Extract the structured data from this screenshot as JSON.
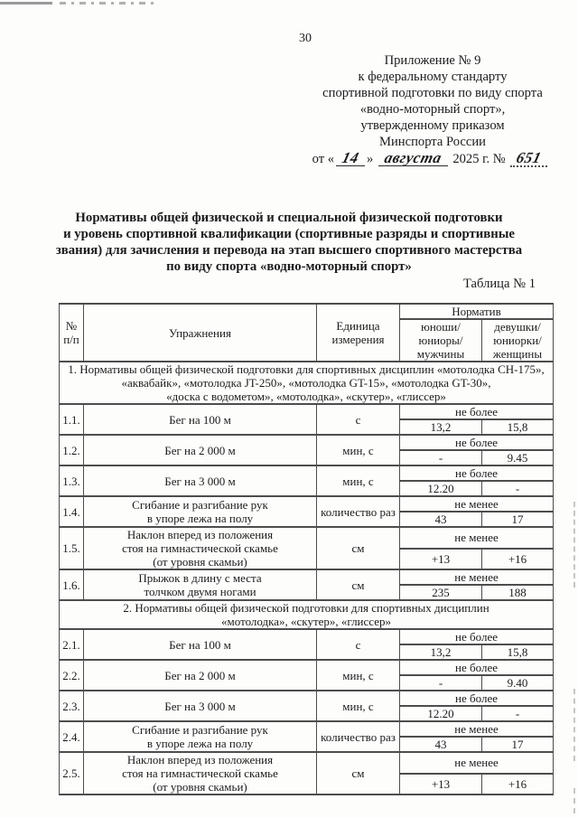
{
  "page": {
    "number": "30",
    "appendix": {
      "lines": [
        "Приложение № 9",
        "к федеральному стандарту",
        "спортивной подготовки по виду спорта",
        "«водно-моторный спорт»,",
        "утвержденному приказом",
        "Минспорта России"
      ],
      "date": {
        "prefix": "от «",
        "day": "14",
        "close_quote": "»",
        "month": "августа",
        "year": "2025 г. №",
        "number": "651"
      }
    },
    "title_lines": [
      "Нормативы общей физической и специальной физической подготовки",
      "и уровень спортивной квалификации (спортивные разряды и спортивные",
      "звания) для зачисления и перевода на этап высшего спортивного мастерства",
      "по виду спорта «водно-моторный спорт»"
    ],
    "table_caption": "Таблица № 1"
  },
  "table": {
    "headers": {
      "num": "№\nп/п",
      "exercise": "Упражнения",
      "unit": "Единица\nизмерения",
      "norm": "Норматив",
      "male": "юноши/\nюниоры/\nмужчины",
      "female": "девушки/\nюниорки/\nженщины"
    },
    "sections": [
      {
        "title": "1. Нормативы общей физической подготовки для спортивных дисциплин «мотолодка СН-175»,\n«аквабайк», «мотолодка JT-250», «мотолодка GT-15», «мотолодка GT-30»,\n«доска с водометом», «мотолодка», «скутер», «глиссер»",
        "rows": [
          {
            "num": "1.1.",
            "exercise": "Бег на 100 м",
            "unit": "с",
            "condition": "не более",
            "male": "13,2",
            "female": "15,8"
          },
          {
            "num": "1.2.",
            "exercise": "Бег на 2 000 м",
            "unit": "мин, с",
            "condition": "не более",
            "male": "-",
            "female": "9.45"
          },
          {
            "num": "1.3.",
            "exercise": "Бег на 3 000 м",
            "unit": "мин, с",
            "condition": "не более",
            "male": "12.20",
            "female": "-"
          },
          {
            "num": "1.4.",
            "exercise": "Сгибание и разгибание рук\nв упоре лежа на полу",
            "unit": "количество раз",
            "condition": "не менее",
            "male": "43",
            "female": "17"
          },
          {
            "num": "1.5.",
            "exercise": "Наклон вперед из положения\nстоя на гимнастической скамье\n(от уровня скамьи)",
            "unit": "см",
            "condition": "не менее",
            "male": "+13",
            "female": "+16"
          },
          {
            "num": "1.6.",
            "exercise": "Прыжок в длину с места\nтолчком двумя ногами",
            "unit": "см",
            "condition": "не менее",
            "male": "235",
            "female": "188"
          }
        ]
      },
      {
        "title": "2. Нормативы общей физической подготовки для спортивных дисциплин\n«мотолодка», «скутер», «глиссер»",
        "rows": [
          {
            "num": "2.1.",
            "exercise": "Бег на 100 м",
            "unit": "с",
            "condition": "не более",
            "male": "13,2",
            "female": "15,8"
          },
          {
            "num": "2.2.",
            "exercise": "Бег на 2 000 м",
            "unit": "мин, с",
            "condition": "не более",
            "male": "-",
            "female": "9.40"
          },
          {
            "num": "2.3.",
            "exercise": "Бег на 3 000 м",
            "unit": "мин, с",
            "condition": "не более",
            "male": "12.20",
            "female": "-"
          },
          {
            "num": "2.4.",
            "exercise": "Сгибание и разгибание рук\nв упоре лежа на полу",
            "unit": "количество раз",
            "condition": "не менее",
            "male": "43",
            "female": "17"
          },
          {
            "num": "2.5.",
            "exercise": "Наклон вперед из положения\nстоя на гимнастической скамье\n(от уровня скамьи)",
            "unit": "см",
            "condition": "не менее",
            "male": "+13",
            "female": "+16"
          }
        ]
      }
    ]
  }
}
